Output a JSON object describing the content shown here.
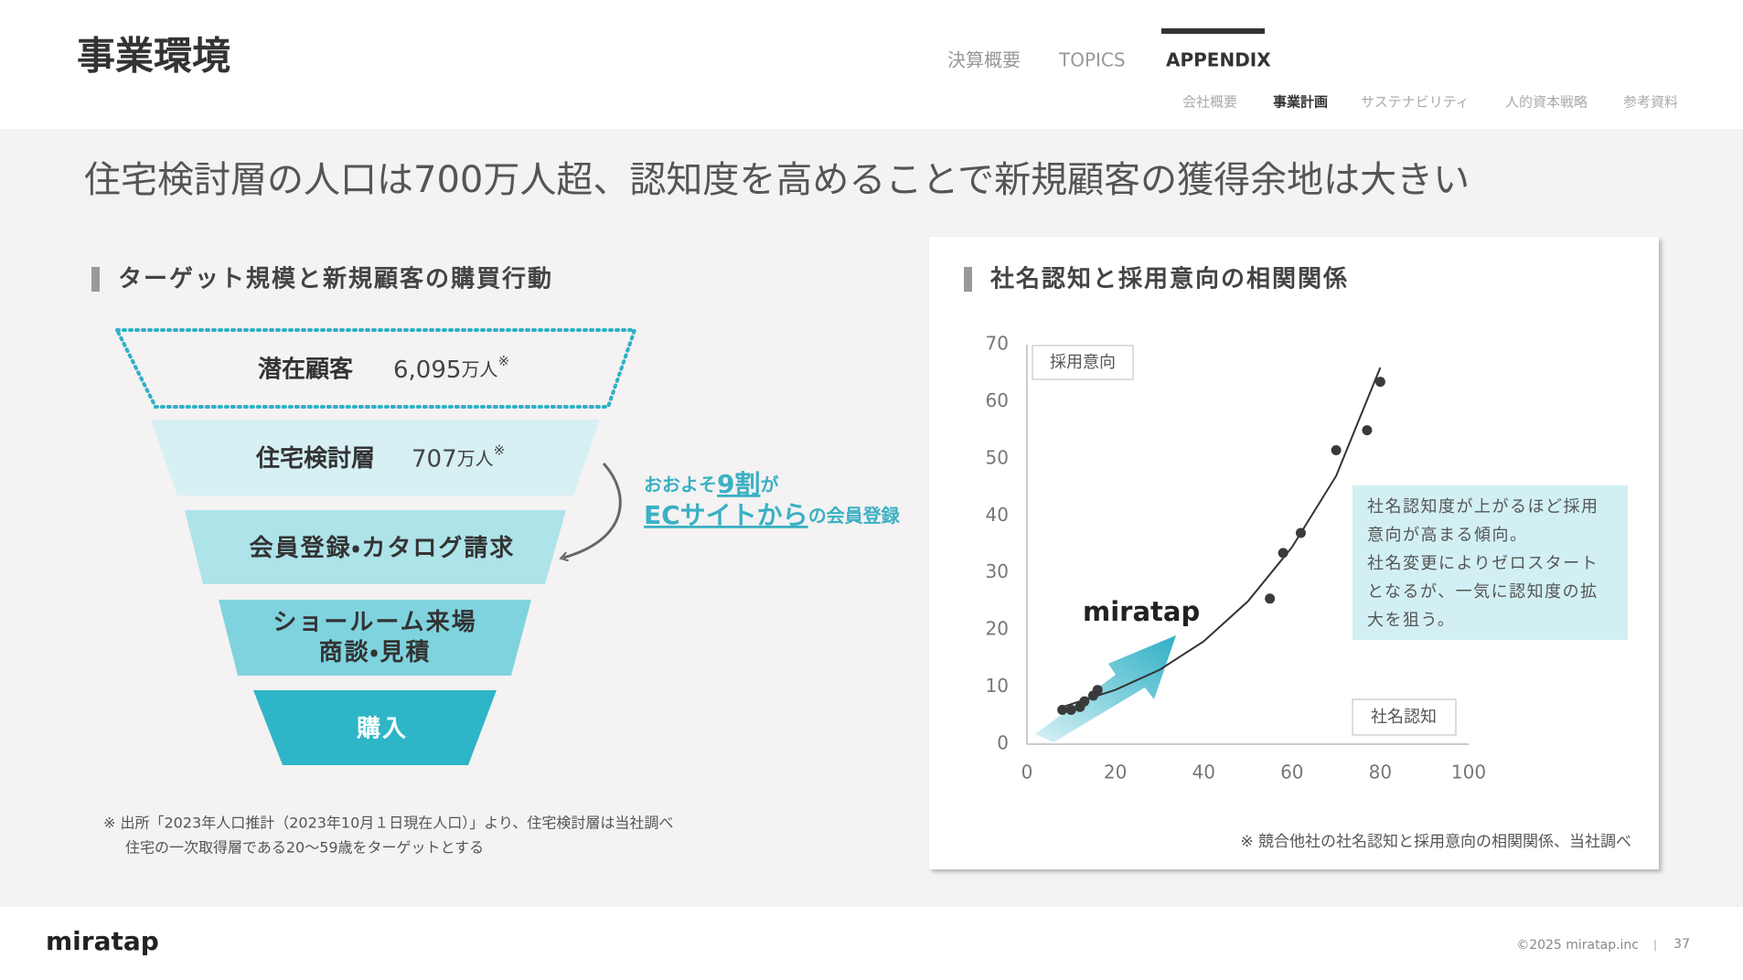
{
  "header": {
    "title": "事業環境",
    "nav": [
      "決算概要",
      "TOPICS",
      "APPENDIX"
    ],
    "active_nav": 2,
    "subnav": [
      "会社概要",
      "事業計画",
      "サステナビリティ",
      "人的資本戦略",
      "参考資料"
    ],
    "active_subnav": 1
  },
  "headline": "住宅検討層の人口は700万人超、認知度を高めることで新規顧客の獲得余地は大きい",
  "funnel": {
    "title": "ターゲット規模と新規顧客の購買行動",
    "stages": [
      {
        "label": "潜在顧客",
        "value": "6,095",
        "unit": "万人",
        "mark": "※"
      },
      {
        "label": "住宅検討層",
        "value": "707",
        "unit": "万人",
        "mark": "※"
      },
      {
        "label": "会員登録・カタログ請求"
      },
      {
        "label": "ショールーム来場",
        "label2": "商談・見積"
      },
      {
        "label": "購入"
      }
    ],
    "callout": {
      "pre": "おおよそ",
      "highlight": "9割",
      "post": "が",
      "highlight2": "ECサイトから",
      "post2": "の会員登録"
    },
    "note": [
      "※ 出所「2023年人口推計（2023年10月１日現在人口）」より、住宅検討層は当社調べ",
      "住宅の一次取得層である20〜59歳をターゲットとする"
    ]
  },
  "chart_data": {
    "type": "scatter",
    "title": "社名認知と採用意向の相関関係",
    "x_label": "社名認知",
    "y_label": "採用意向",
    "x": [
      8,
      10,
      12,
      13,
      15,
      16,
      55,
      58,
      62,
      70,
      77,
      80
    ],
    "y": [
      6,
      6,
      6.5,
      7.5,
      8.5,
      9.5,
      25.5,
      33.5,
      37,
      51.5,
      55,
      63.5
    ],
    "color": "#3a3a3a",
    "trendline": {
      "x": [
        8,
        20,
        30,
        40,
        50,
        60,
        70,
        80
      ],
      "y": [
        6.5,
        9.5,
        13,
        18,
        25,
        34.5,
        47,
        66
      ]
    },
    "xlim": [
      0,
      100
    ],
    "xticks": [
      0,
      20,
      40,
      60,
      80,
      100
    ],
    "ylim": [
      0,
      70
    ],
    "yticks": [
      0,
      10,
      20,
      30,
      40,
      50,
      60,
      70
    ],
    "annotation": [
      "社名認知度が上がるほど採用",
      "意向が高まる傾向。",
      "社名変更によりゼロスタート",
      "となるが、一気に認知度の拡",
      "大を狙う。"
    ],
    "logo": "miratap",
    "note": "※ 競合他社の社名認知と採用意向の相関関係、当社調べ"
  },
  "footer": {
    "logo": "miratap",
    "copyright": "©2025 miratap.inc",
    "separator": "|",
    "page": "37"
  }
}
